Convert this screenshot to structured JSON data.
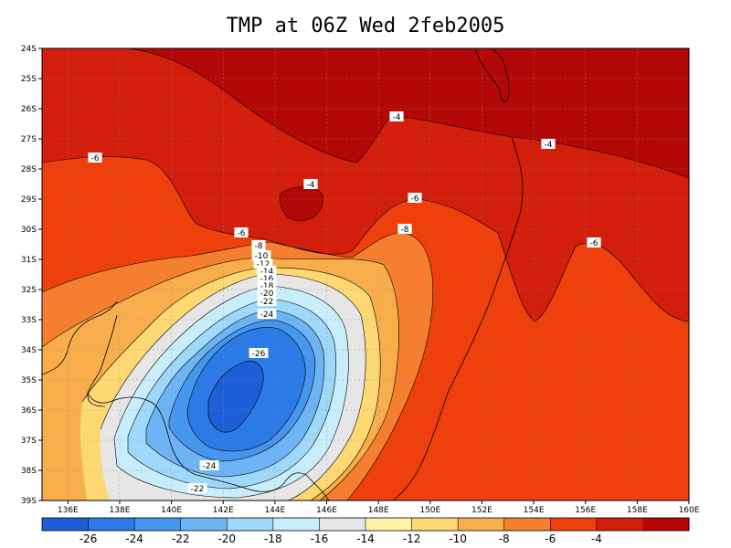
{
  "title": "TMP at 06Z Wed 2feb2005",
  "lat_ticks": [
    "24S",
    "25S",
    "26S",
    "27S",
    "28S",
    "29S",
    "30S",
    "31S",
    "32S",
    "33S",
    "34S",
    "35S",
    "36S",
    "37S",
    "38S",
    "39S"
  ],
  "lon_ticks": [
    "136E",
    "138E",
    "140E",
    "142E",
    "144E",
    "146E",
    "148E",
    "150E",
    "152E",
    "154E",
    "156E",
    "158E",
    "160E"
  ],
  "contour_labels": [
    "-4",
    "-4",
    "-4",
    "-6",
    "-6",
    "-6",
    "-6",
    "-8",
    "-8",
    "-10",
    "-12",
    "-14",
    "-16",
    "-18",
    "-20",
    "-22",
    "-24",
    "-26",
    "-24",
    "-22"
  ],
  "colorbar": {
    "colors": [
      "#1e5fd8",
      "#2c7ae6",
      "#4696ee",
      "#6db4f5",
      "#9ed8fa",
      "#c8eefc",
      "#e6e6e6",
      "#fff3a8",
      "#fdd873",
      "#f8ae4a",
      "#f57f2e",
      "#ef3f0a",
      "#d21e0a",
      "#b40808"
    ],
    "labels": [
      "-26",
      "-24",
      "-22",
      "-20",
      "-18",
      "-16",
      "-14",
      "-12",
      "-10",
      "-8",
      "-6",
      "-4"
    ]
  }
}
